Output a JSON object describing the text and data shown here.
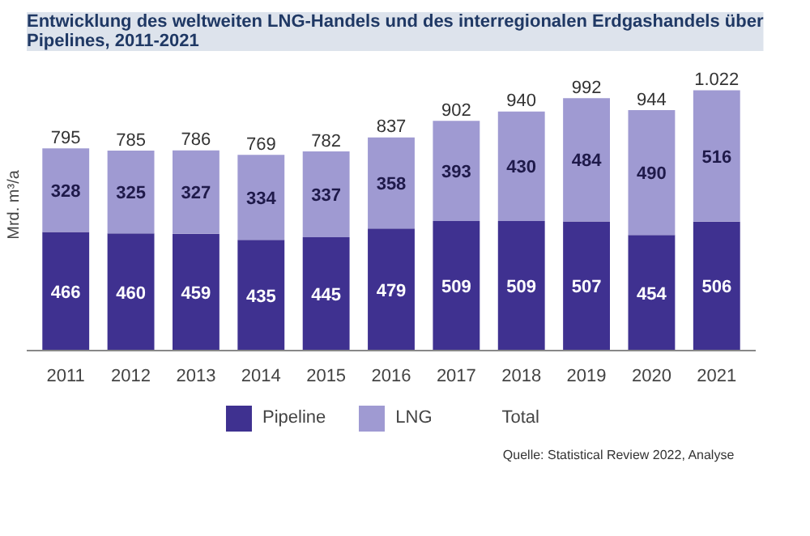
{
  "chart_data": {
    "type": "bar",
    "title": "Entwicklung des weltweiten LNG-Handels und des interregionalen Erdgashandels über\nPipelines, 2011-2021",
    "ylabel": "Mrd. m³/a",
    "categories": [
      "2011",
      "2012",
      "2013",
      "2014",
      "2015",
      "2016",
      "2017",
      "2018",
      "2019",
      "2020",
      "2021"
    ],
    "stacked": true,
    "data_labels": true,
    "series": [
      {
        "name": "Pipeline",
        "color": "#3f3190",
        "values": [
          466,
          460,
          459,
          435,
          445,
          479,
          509,
          509,
          507,
          454,
          506
        ]
      },
      {
        "name": "LNG",
        "color": "#9f9ad2",
        "values": [
          328,
          325,
          327,
          334,
          337,
          358,
          393,
          430,
          484,
          490,
          516
        ]
      }
    ],
    "totals": [
      "795",
      "785",
      "786",
      "769",
      "782",
      "837",
      "902",
      "940",
      "992",
      "944",
      "1.022"
    ],
    "legend": "bottom",
    "grid": false,
    "annotations": [
      "Total",
      "Quelle: Statistical Review 2022, Analyse"
    ]
  }
}
